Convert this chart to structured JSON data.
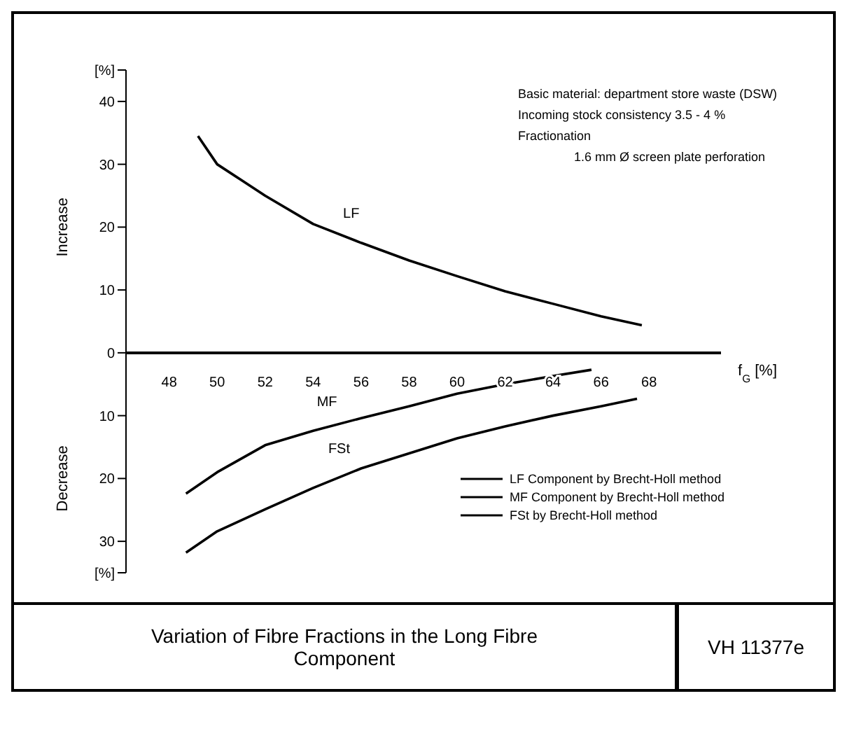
{
  "chart_data": {
    "type": "line",
    "title": "Variation of Fibre Fractions in the Long Fibre Component",
    "xlabel": "f$_{G}$ [%]",
    "ylabel": "Increase",
    "xlim": [
      46.2,
      71
    ],
    "xticks": [
      48,
      50,
      52,
      54,
      56,
      58,
      60,
      62,
      64,
      66,
      68
    ],
    "ylim": [
      -35,
      45
    ],
    "yticks": [
      {
        "value": 45,
        "label": "[%]"
      },
      40,
      30,
      20,
      10,
      0,
      {
        "value": -10,
        "label": "10"
      },
      {
        "value": -20,
        "label": "20"
      },
      {
        "value": -30,
        "label": "30"
      },
      {
        "value": -35,
        "label": "[%]"
      }
    ],
    "grid": false,
    "legend": "bottom right",
    "marker": "none",
    "line_style": "solid",
    "series": [
      {
        "name": "LF Component by Brecht-Holl method",
        "color": "#000000",
        "x": [
          49.2,
          50,
          51,
          52,
          54,
          56,
          58,
          60,
          62,
          64,
          66,
          67.7
        ],
        "values": [
          34.5,
          30,
          27.5,
          25,
          20.5,
          17.5,
          14.7,
          12.2,
          9.8,
          7.8,
          5.8,
          4.4
        ]
      },
      {
        "name": "MF Component by Brecht-Holl method",
        "color": "#000000",
        "x": [
          48.7,
          50,
          52,
          54,
          56,
          58,
          60,
          62,
          64,
          65.6
        ],
        "values": [
          -22.4,
          -19,
          -14.7,
          -12.4,
          -10.4,
          -8.5,
          -6.5,
          -5,
          -3.7,
          -2.7
        ]
      },
      {
        "name": "FSt by Brecht-Holl method",
        "color": "#000000",
        "x": [
          48.7,
          50,
          52,
          54,
          56,
          58,
          60,
          62,
          64,
          66,
          67.5
        ],
        "values": [
          -31.8,
          -28.4,
          -24.9,
          -21.5,
          -18.4,
          -16,
          -13.6,
          -11.7,
          -10,
          -8.5,
          -7.3
        ]
      }
    ],
    "annotations": [
      "Basic material: department store waste (DSW)",
      "Incoming stock consistency 3.5 - 4 %",
      "Fractionation",
      "1.6 mm Ø screen plate perforation",
      "Decrease",
      "VH 11377e",
      "LF",
      "MF",
      "FSt"
    ]
  }
}
